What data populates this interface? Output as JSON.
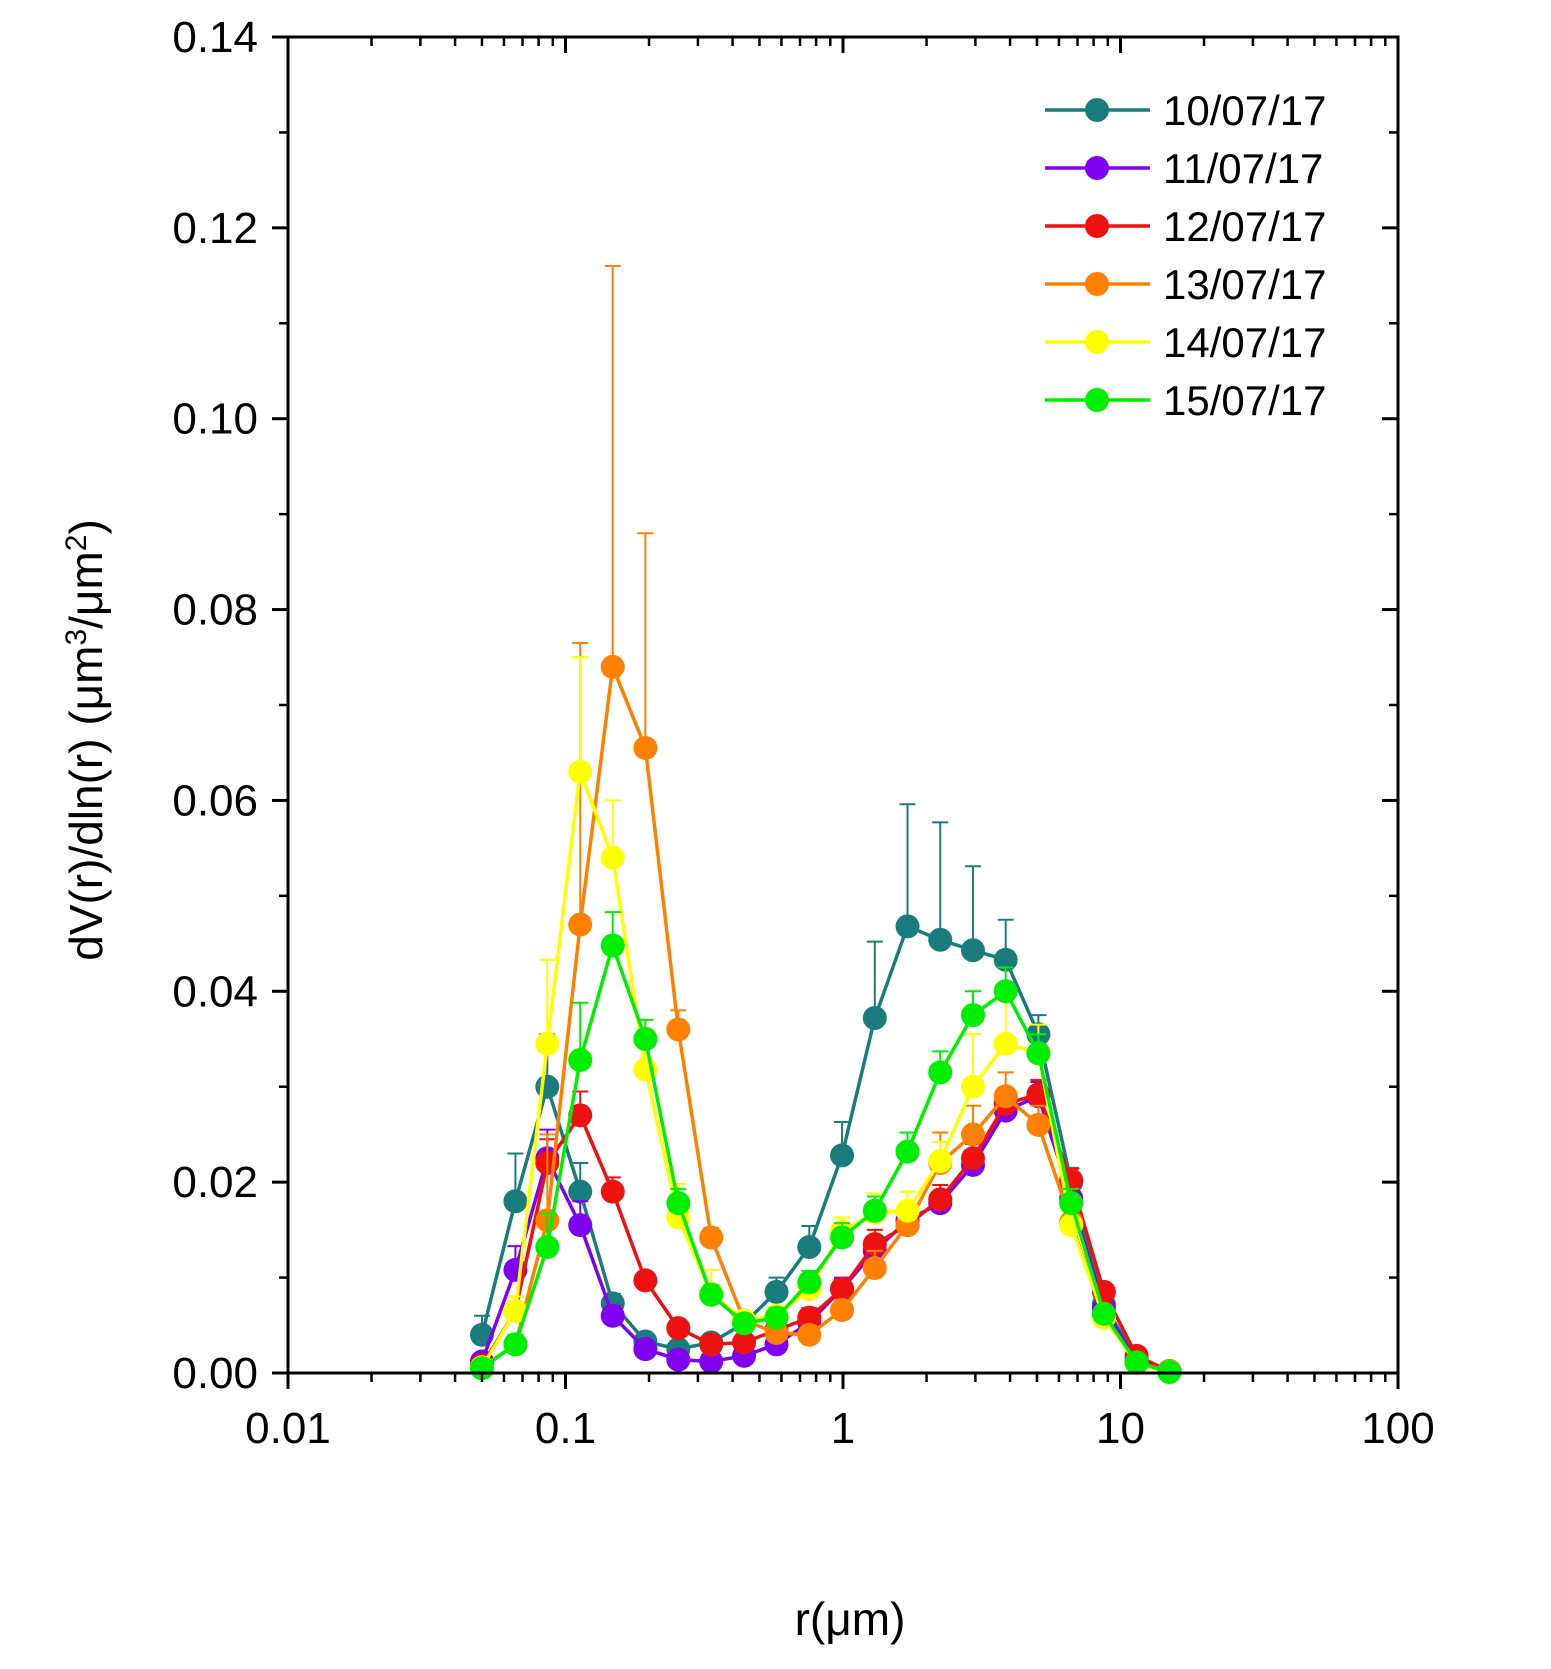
{
  "chart_data": {
    "type": "line",
    "title": "",
    "xlabel": "r(μm)",
    "ylabel": {
      "prefix": "dV(r)/dln(r) (μm",
      "sup1": "3",
      "middle": "/μm",
      "sup2": "2",
      "suffix": ")"
    },
    "xscale": "log",
    "xlim": [
      0.01,
      100
    ],
    "ylim": [
      0,
      0.14
    ],
    "x_ticks": [
      0.01,
      0.1,
      1,
      10,
      100
    ],
    "x_tick_labels": [
      "0.01",
      "0.1",
      "1",
      "10",
      "100"
    ],
    "y_ticks": [
      0,
      0.02,
      0.04,
      0.06,
      0.08,
      0.1,
      0.12,
      0.14
    ],
    "y_tick_labels": [
      "0.00",
      "0.02",
      "0.04",
      "0.06",
      "0.08",
      "0.10",
      "0.12",
      "0.14"
    ],
    "legend_position": "top-right",
    "x": [
      0.05,
      0.066,
      0.086,
      0.113,
      0.148,
      0.194,
      0.255,
      0.335,
      0.44,
      0.576,
      0.756,
      0.992,
      1.302,
      1.708,
      2.241,
      2.94,
      3.857,
      5.06,
      6.641,
      8.713,
      11.432,
      15.0
    ],
    "series": [
      {
        "name": "10/07/17",
        "color": "#1a7c7c",
        "values": [
          0.004,
          0.018,
          0.03,
          0.019,
          0.0073,
          0.0033,
          0.0025,
          0.0032,
          0.0052,
          0.0085,
          0.0132,
          0.0228,
          0.0372,
          0.0468,
          0.0454,
          0.0443,
          0.0433,
          0.0355,
          0.02,
          0.0072,
          0.0015,
          0.0002
        ],
        "errors": [
          0.002,
          0.005,
          0.0055,
          0.003,
          0.001,
          0.0005,
          0.0005,
          0.0008,
          0.001,
          0.0015,
          0.0022,
          0.0035,
          0.008,
          0.0128,
          0.0123,
          0.0088,
          0.0042,
          0.002,
          0.0015,
          0.001,
          0.0005,
          0.0002
        ]
      },
      {
        "name": "11/07/17",
        "color": "#8000f0",
        "values": [
          0.0012,
          0.0108,
          0.0225,
          0.0155,
          0.006,
          0.0025,
          0.0014,
          0.0012,
          0.0018,
          0.003,
          0.0053,
          0.0088,
          0.0128,
          0.016,
          0.0178,
          0.0218,
          0.0275,
          0.029,
          0.0183,
          0.0068,
          0.0012,
          0.0002
        ],
        "errors": [
          0.0008,
          0.0025,
          0.003,
          0.0025,
          0.001,
          0.0004,
          0.0003,
          0.0003,
          0.0004,
          0.0005,
          0.001,
          0.0012,
          0.0015,
          0.0015,
          0.0012,
          0.0012,
          0.0015,
          0.0015,
          0.0012,
          0.0008,
          0.0004,
          0.0002
        ]
      },
      {
        "name": "12/07/17",
        "color": "#ee1111",
        "values": [
          0.0008,
          0.0065,
          0.022,
          0.027,
          0.019,
          0.0097,
          0.0047,
          0.003,
          0.0032,
          0.0045,
          0.0058,
          0.0088,
          0.0135,
          0.0155,
          0.0182,
          0.0225,
          0.0282,
          0.0292,
          0.0202,
          0.0085,
          0.0018,
          0.0002
        ],
        "errors": [
          0.0005,
          0.0015,
          0.0025,
          0.0025,
          0.0015,
          0.0008,
          0.0005,
          0.0004,
          0.0005,
          0.0006,
          0.001,
          0.001,
          0.0015,
          0.0015,
          0.0015,
          0.0015,
          0.0015,
          0.0015,
          0.0012,
          0.0008,
          0.0004,
          0.0002
        ]
      },
      {
        "name": "13/07/17",
        "color": "#ff8000",
        "values": [
          0.0006,
          0.003,
          0.016,
          0.047,
          0.074,
          0.0655,
          0.036,
          0.0142,
          0.0055,
          0.0042,
          0.004,
          0.0066,
          0.011,
          0.0155,
          0.022,
          0.025,
          0.029,
          0.026,
          0.0158,
          0.0058,
          0.0011,
          0.0002
        ],
        "errors": [
          0.0004,
          0.001,
          0.009,
          0.0295,
          0.042,
          0.0225,
          0.002,
          0.001,
          0.0008,
          0.0006,
          0.0008,
          0.001,
          0.0018,
          0.0035,
          0.0032,
          0.003,
          0.0025,
          0.002,
          0.0012,
          0.0006,
          0.0004,
          0.0002
        ]
      },
      {
        "name": "14/07/17",
        "color": "#ffff00",
        "values": [
          0.0006,
          0.0065,
          0.0345,
          0.063,
          0.054,
          0.0318,
          0.0163,
          0.0083,
          0.0055,
          0.006,
          0.0088,
          0.0148,
          0.0168,
          0.017,
          0.0222,
          0.03,
          0.0345,
          0.0335,
          0.0155,
          0.0058,
          0.001,
          0.0001
        ],
        "errors": [
          0.0004,
          0.0015,
          0.0088,
          0.012,
          0.006,
          0.0042,
          0.0035,
          0.0025,
          0.0008,
          0.0008,
          0.0015,
          0.0015,
          0.002,
          0.002,
          0.002,
          0.0055,
          0.006,
          0.003,
          0.0015,
          0.0006,
          0.0003,
          0.0001
        ]
      },
      {
        "name": "15/07/17",
        "color": "#00ee00",
        "values": [
          0.0005,
          0.003,
          0.0132,
          0.0328,
          0.0448,
          0.035,
          0.0178,
          0.0082,
          0.0052,
          0.0058,
          0.0095,
          0.0142,
          0.017,
          0.0232,
          0.0315,
          0.0375,
          0.04,
          0.0335,
          0.0178,
          0.0062,
          0.0011,
          0.0001
        ],
        "errors": [
          0.0003,
          0.001,
          0.0035,
          0.006,
          0.0035,
          0.002,
          0.0015,
          0.001,
          0.0008,
          0.001,
          0.0012,
          0.0015,
          0.0015,
          0.002,
          0.0022,
          0.0025,
          0.0025,
          0.002,
          0.0015,
          0.0006,
          0.0003,
          0.0001
        ]
      }
    ]
  }
}
